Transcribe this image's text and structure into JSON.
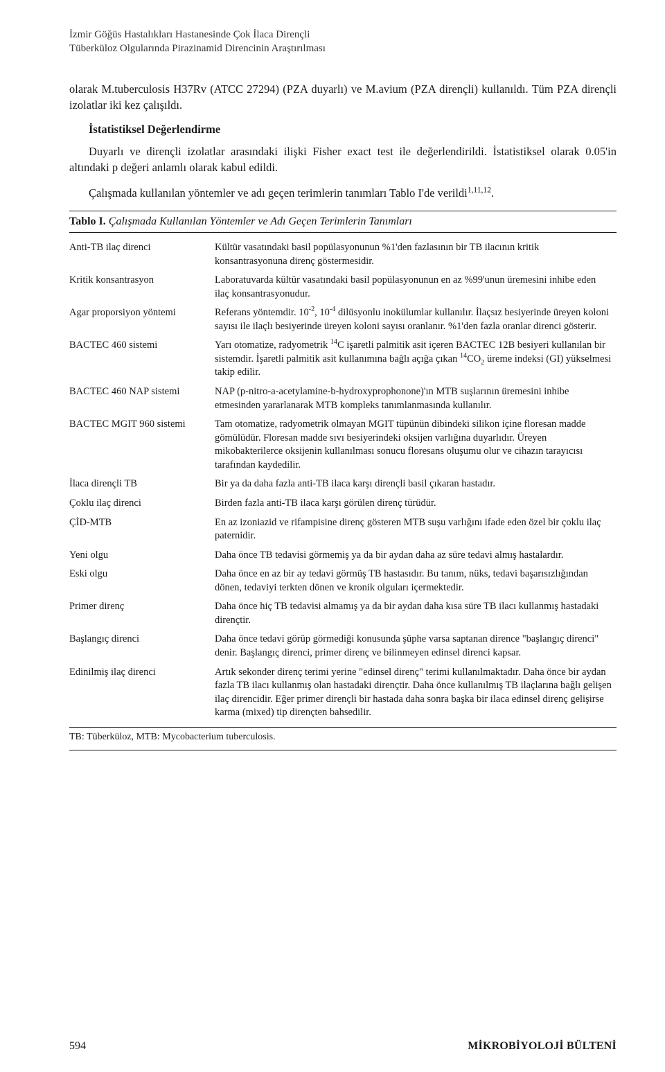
{
  "running_head_lines": [
    "İzmir Göğüs Hastalıkları Hastanesinde Çok İlaca Dirençli",
    "Tüberküloz Olgularında Pirazinamid Direncinin Araştırılması"
  ],
  "para_intro": "olarak M.tuberculosis H37Rv (ATCC 27294) (PZA duyarlı) ve M.avium (PZA dirençli) kullanıldı. Tüm PZA dirençli izolatlar iki kez çalışıldı.",
  "section_head": "İstatistiksel Değerlendirme",
  "para_stats1": "Duyarlı ve dirençli izolatlar arasındaki ilişki Fisher exact test ile değerlendirildi. İstatistiksel olarak 0.05'in altındaki p değeri anlamlı olarak kabul edildi.",
  "para_stats2_pre": "Çalışmada kullanılan yöntemler ve adı geçen terimlerin tanımları Tablo I'de verildi",
  "para_stats2_sup": "1,11,12",
  "para_stats2_post": ".",
  "table": {
    "caption_bold": "Tablo I.",
    "caption_italic": "Çalışmada Kullanılan Yöntemler ve Adı Geçen Terimlerin Tanımları",
    "rows": [
      {
        "term": "Anti-TB ilaç direnci",
        "def_html": "Kültür vasatındaki basil popülasyonunun %1'den fazlasının bir TB ilacının kritik konsantrasyonuna direnç göstermesidir."
      },
      {
        "term": "Kritik konsantrasyon",
        "def_html": "Laboratuvarda kültür vasatındaki basil popülasyonunun en az %99'unun üremesini inhibe eden ilaç konsantrasyonudur."
      },
      {
        "term": "Agar proporsiyon yöntemi",
        "def_html": "Referans yöntemdir. 10<sup>-2</sup>, 10<sup>-4</sup> dilüsyonlu inokülumlar kullanılır. İlaçsız besiyerinde üreyen koloni sayısı ile ilaçlı besiyerinde üreyen koloni sayısı oranlanır. %1'den fazla oranlar direnci gösterir."
      },
      {
        "term": "BACTEC 460 sistemi",
        "def_html": "Yarı otomatize, radyometrik <sup>14</sup>C işaretli palmitik asit içeren BACTEC 12B besiyeri kullanılan bir sistemdir. İşaretli palmitik asit kullanımına bağlı açığa çıkan <sup>14</sup>CO<sub>2</sub> üreme indeksi (GI) yükselmesi takip edilir."
      },
      {
        "term": "BACTEC 460 NAP sistemi",
        "def_html": "NAP (p-nitro-a-acetylamine-b-hydroxyprophonone)'ın MTB suşlarının üremesini inhibe etmesinden yararlanarak MTB kompleks tanımlanmasında kullanılır."
      },
      {
        "term": "BACTEC MGIT 960 sistemi",
        "def_html": "Tam otomatize, radyometrik olmayan MGIT tüpünün dibindeki silikon içine floresan madde gömülüdür. Floresan madde sıvı besiyerindeki oksijen varlığına duyarlıdır. Üreyen mikobakterilerce oksijenin kullanılması sonucu floresans oluşumu olur ve cihazın tarayıcısı tarafından kaydedilir."
      },
      {
        "term": "İlaca dirençli TB",
        "def_html": "Bir ya da daha fazla anti-TB ilaca karşı dirençli basil çıkaran hastadır."
      },
      {
        "term": "Çoklu ilaç direnci",
        "def_html": "Birden fazla anti-TB ilaca karşı görülen direnç türüdür."
      },
      {
        "term": "ÇİD-MTB",
        "def_html": "En az izoniazid ve rifampisine direnç gösteren MTB suşu varlığını ifade eden özel bir çoklu ilaç paternidir."
      },
      {
        "term": "Yeni olgu",
        "def_html": "Daha önce TB tedavisi görmemiş ya da bir aydan daha az süre tedavi almış hastalardır."
      },
      {
        "term": "Eski olgu",
        "def_html": "Daha önce en az bir ay tedavi görmüş TB hastasıdır. Bu tanım, nüks, tedavi başarısızlığından dönen, tedaviyi terkten dönen ve kronik olguları içermektedir."
      },
      {
        "term": "Primer direnç",
        "def_html": "Daha önce hiç TB tedavisi almamış ya da bir aydan daha kısa süre TB ilacı kullanmış hastadaki dirençtir."
      },
      {
        "term": "Başlangıç direnci",
        "def_html": "Daha önce tedavi görüp görmediği konusunda şüphe varsa saptanan dirence \"başlangıç direnci\" denir. Başlangıç direnci, primer direnç ve bilinmeyen edinsel direnci kapsar."
      },
      {
        "term": "Edinilmiş ilaç direnci",
        "def_html": "Artık sekonder direnç terimi yerine \"edinsel direnç\" terimi kullanılmaktadır. Daha önce bir aydan fazla TB ilacı kullanmış olan hastadaki dirençtir. Daha önce kullanılmış TB ilaçlarına bağlı gelişen ilaç direncidir. Eğer primer dirençli bir hastada daha sonra başka bir ilaca edinsel direnç gelişirse karma (mixed) tip dirençten bahsedilir."
      }
    ],
    "footnote": "TB: Tüberküloz, MTB: Mycobacterium tuberculosis."
  },
  "footer": {
    "page_number": "594",
    "journal": "MİKROBİYOLOJİ BÜLTENİ"
  }
}
